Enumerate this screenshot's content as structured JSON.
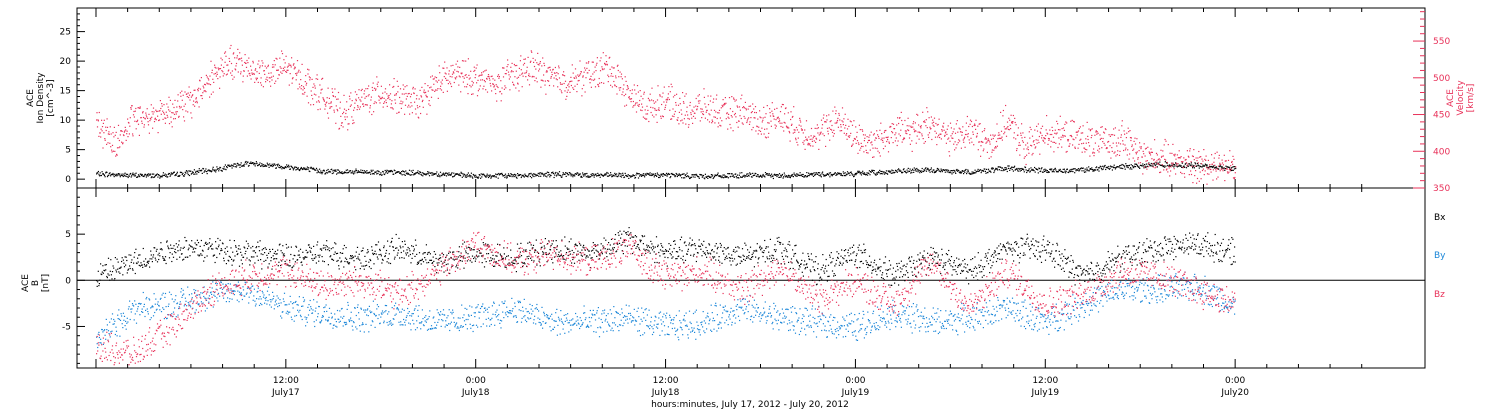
{
  "colors": {
    "black": "#000000",
    "red": "#e8325a",
    "blue": "#1a86d8"
  },
  "chart_data": [
    {
      "type": "scatter",
      "panel": "plasma",
      "left_axis": {
        "label_lines": [
          "ACE",
          "Ion Density",
          "[cm^-3]"
        ],
        "range": [
          -1.5,
          29
        ],
        "ticks": [
          0,
          5,
          10,
          15,
          20,
          25
        ]
      },
      "right_axis": {
        "label_lines": [
          "ACE",
          "Velocity",
          "[km/s]"
        ],
        "range": [
          350,
          595
        ],
        "ticks": [
          350,
          400,
          450,
          500,
          550
        ]
      },
      "series": [
        {
          "color": "#000000",
          "axis": "left",
          "x": [
            0,
            0.1,
            0.2,
            0.3,
            0.4,
            0.5,
            0.6,
            0.7,
            0.8,
            0.9,
            1.0,
            1.1,
            1.2,
            1.3,
            1.4,
            1.5,
            1.6,
            1.7,
            1.8,
            1.9,
            2.0,
            2.1,
            2.2,
            2.3,
            2.4,
            2.5,
            2.6,
            2.7,
            2.8,
            2.9,
            3.0
          ],
          "y": [
            1.0,
            0.7,
            0.8,
            1.6,
            2.8,
            2.2,
            1.4,
            1.3,
            1.2,
            1.0,
            0.6,
            0.7,
            0.9,
            0.8,
            0.7,
            0.8,
            0.6,
            0.7,
            0.7,
            0.9,
            1.0,
            1.4,
            1.6,
            1.3,
            1.9,
            1.5,
            1.7,
            2.2,
            2.6,
            2.4,
            1.9
          ]
        },
        {
          "color": "#e8325a",
          "axis": "right",
          "x": [
            0,
            0.05,
            0.1,
            0.15,
            0.2,
            0.25,
            0.3,
            0.35,
            0.4,
            0.45,
            0.5,
            0.55,
            0.6,
            0.65,
            0.7,
            0.75,
            0.8,
            0.85,
            0.9,
            0.95,
            1.0,
            1.05,
            1.1,
            1.15,
            1.2,
            1.25,
            1.3,
            1.35,
            1.4,
            1.45,
            1.5,
            1.55,
            1.6,
            1.65,
            1.7,
            1.75,
            1.8,
            1.85,
            1.9,
            1.95,
            2.0,
            2.05,
            2.1,
            2.15,
            2.2,
            2.25,
            2.3,
            2.35,
            2.4,
            2.45,
            2.5,
            2.55,
            2.6,
            2.65,
            2.7,
            2.75,
            2.8,
            2.85,
            2.9,
            2.95,
            3.0
          ],
          "y": [
            440,
            410,
            445,
            450,
            458,
            468,
            500,
            520,
            515,
            505,
            515,
            495,
            475,
            450,
            470,
            480,
            472,
            465,
            495,
            505,
            500,
            490,
            505,
            515,
            500,
            495,
            505,
            515,
            478,
            460,
            470,
            455,
            460,
            450,
            455,
            440,
            450,
            430,
            420,
            445,
            420,
            410,
            430,
            425,
            440,
            415,
            430,
            410,
            440,
            405,
            428,
            420,
            418,
            410,
            420,
            395,
            392,
            388,
            380,
            385,
            378
          ]
        }
      ]
    },
    {
      "type": "scatter",
      "panel": "magnetic_field",
      "left_axis": {
        "label_lines": [
          "ACE",
          "B",
          "[nT]"
        ],
        "range": [
          -9.5,
          10
        ],
        "ticks": [
          -5,
          0,
          5
        ]
      },
      "legend": [
        "Bx",
        "By",
        "Bz"
      ],
      "series": [
        {
          "name": "Bx",
          "color": "#000000",
          "x": [
            0,
            0.1,
            0.2,
            0.3,
            0.4,
            0.5,
            0.6,
            0.7,
            0.8,
            0.9,
            1.0,
            1.1,
            1.2,
            1.3,
            1.4,
            1.5,
            1.6,
            1.7,
            1.8,
            1.9,
            2.0,
            2.1,
            2.2,
            2.3,
            2.4,
            2.5,
            2.6,
            2.7,
            2.8,
            2.9,
            3.0
          ],
          "y": [
            0.5,
            2.0,
            3.5,
            3.5,
            3.0,
            2.5,
            3.0,
            2.5,
            3.5,
            2.0,
            3.0,
            2.5,
            3.5,
            3.0,
            4.5,
            3.0,
            3.5,
            2.5,
            3.5,
            1.0,
            3.0,
            0.5,
            2.5,
            1.0,
            3.5,
            3.5,
            0.5,
            2.5,
            3.5,
            4.0,
            3.0
          ]
        },
        {
          "name": "By",
          "color": "#1a86d8",
          "x": [
            0,
            0.1,
            0.2,
            0.3,
            0.4,
            0.5,
            0.6,
            0.7,
            0.8,
            0.9,
            1.0,
            1.1,
            1.2,
            1.3,
            1.4,
            1.5,
            1.6,
            1.7,
            1.8,
            1.9,
            2.0,
            2.1,
            2.2,
            2.3,
            2.4,
            2.5,
            2.6,
            2.7,
            2.8,
            2.9,
            3.0
          ],
          "y": [
            -6.5,
            -3.0,
            -2.5,
            -1.5,
            -1.0,
            -3.0,
            -3.5,
            -4.0,
            -3.5,
            -4.5,
            -4.0,
            -3.0,
            -4.5,
            -4.5,
            -4.0,
            -5.0,
            -4.5,
            -3.0,
            -4.0,
            -4.5,
            -5.0,
            -3.5,
            -4.5,
            -4.0,
            -3.0,
            -4.5,
            -2.5,
            -1.0,
            -1.0,
            -0.5,
            -3.0
          ]
        },
        {
          "name": "Bz",
          "color": "#e8325a",
          "x": [
            0,
            0.1,
            0.2,
            0.3,
            0.4,
            0.5,
            0.6,
            0.7,
            0.8,
            0.9,
            1.0,
            1.1,
            1.2,
            1.3,
            1.4,
            1.5,
            1.6,
            1.7,
            1.8,
            1.9,
            2.0,
            2.1,
            2.2,
            2.3,
            2.4,
            2.5,
            2.6,
            2.7,
            2.8,
            2.9,
            3.0
          ],
          "y": [
            -7.0,
            -8.0,
            -5.0,
            -1.0,
            0.5,
            1.0,
            -0.5,
            0.0,
            -1.5,
            1.0,
            4.0,
            2.0,
            3.0,
            2.0,
            3.5,
            0.5,
            1.0,
            -1.0,
            1.5,
            -2.0,
            0.0,
            -2.5,
            2.0,
            -3.0,
            1.0,
            -2.5,
            -1.5,
            1.0,
            0.5,
            -1.0,
            -2.5
          ]
        }
      ]
    }
  ],
  "x_axis": {
    "range": [
      -0.05,
      3.5
    ],
    "tick_labels": [
      {
        "x": 0.5,
        "time": "12:00",
        "date": "July17"
      },
      {
        "x": 1.0,
        "time": "0:00",
        "date": "July18"
      },
      {
        "x": 1.5,
        "time": "12:00",
        "date": "July18"
      },
      {
        "x": 2.0,
        "time": "0:00",
        "date": "July19"
      },
      {
        "x": 2.5,
        "time": "12:00",
        "date": "July19"
      },
      {
        "x": 3.0,
        "time": "0:00",
        "date": "July20"
      }
    ],
    "title": "hours:minutes, July 17, 2012 - July 20, 2012"
  }
}
